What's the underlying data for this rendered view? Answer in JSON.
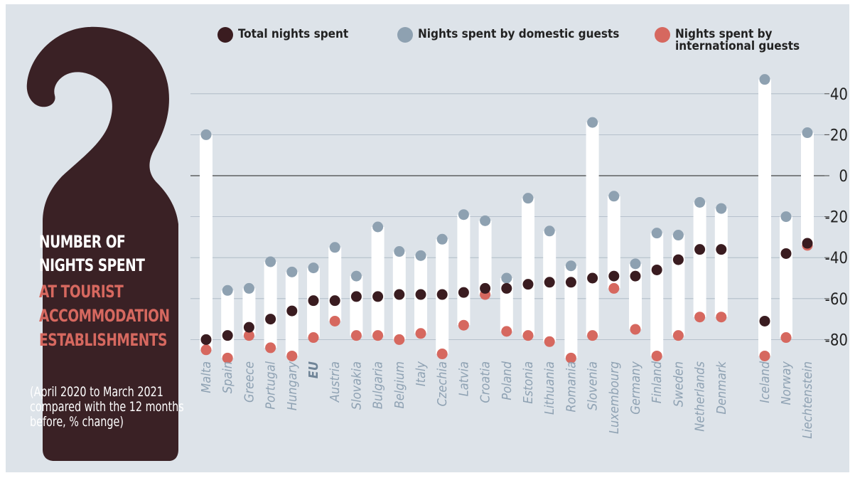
{
  "title": {
    "line1": "NUMBER OF",
    "line2": "NIGHTS SPENT",
    "line3": "AT TOURIST",
    "line4": "ACCOMMODATION",
    "line5": "ESTABLISHMENTS"
  },
  "subtitle": "(April 2020 to March 2021 compared with the 12 months before, % change)",
  "colors": {
    "background": "#dde3e9",
    "hanger": "#3a2125",
    "total": "#3a1c20",
    "domestic": "#8ea1b1",
    "international": "#d6685f",
    "bar": "#ffffff",
    "accent_title": "#d6685f",
    "country_label": "#8fa2b3"
  },
  "chart_data": {
    "type": "dot-range",
    "series": [
      {
        "name": "Total nights spent",
        "values": [
          -80,
          -78,
          -74,
          -70,
          -66,
          -61,
          -61,
          -59,
          -59,
          -58,
          -58,
          -58,
          -57,
          -55,
          -55,
          -53,
          -52,
          -52,
          -50,
          -49,
          -49,
          -46,
          -41,
          -36,
          -36,
          -71,
          -38,
          -33
        ]
      },
      {
        "name": "Nights spent by domestic guests",
        "values": [
          20,
          -56,
          -55,
          -42,
          -47,
          -45,
          -35,
          -49,
          -25,
          -37,
          -39,
          -31,
          -19,
          -22,
          -50,
          -11,
          -27,
          -44,
          26,
          -10,
          -43,
          -28,
          -29,
          -13,
          -16,
          47,
          -20,
          21
        ]
      },
      {
        "name": "Nights spent by\ninternational guests",
        "values": [
          -85,
          -89,
          -78,
          -84,
          -88,
          -79,
          -71,
          -78,
          -78,
          -80,
          -77,
          -87,
          -73,
          -58,
          -76,
          -78,
          -81,
          -89,
          -78,
          -55,
          -75,
          -88,
          -78,
          -69,
          -69,
          -88,
          -79,
          -34
        ]
      }
    ],
    "categories": [
      "Malta",
      "Spain",
      "Greece",
      "Portugal",
      "Hungary",
      "EU",
      "Austria",
      "Slovakia",
      "Bulgaria",
      "Belgium",
      "Italy",
      "Czechia",
      "Latvia",
      "Croatia",
      "Poland",
      "Estonia",
      "Lithuania",
      "Romania",
      "Slovenia",
      "Luxembourg",
      "Germany",
      "Finland",
      "Sweden",
      "Netherlands",
      "Denmark",
      "Iceland",
      "Norway",
      "Liechtenstein"
    ],
    "highlight_category": "EU",
    "yticks": [
      40,
      20,
      0,
      -20,
      -40,
      -60,
      -80
    ],
    "ytick_labels": [
      "40",
      "20",
      "0",
      "-20",
      "-40",
      "-60",
      "-80"
    ],
    "ylim": [
      -95,
      55
    ],
    "grid": true,
    "zero_line": true,
    "axis_side": "right",
    "legend_position": "top"
  }
}
